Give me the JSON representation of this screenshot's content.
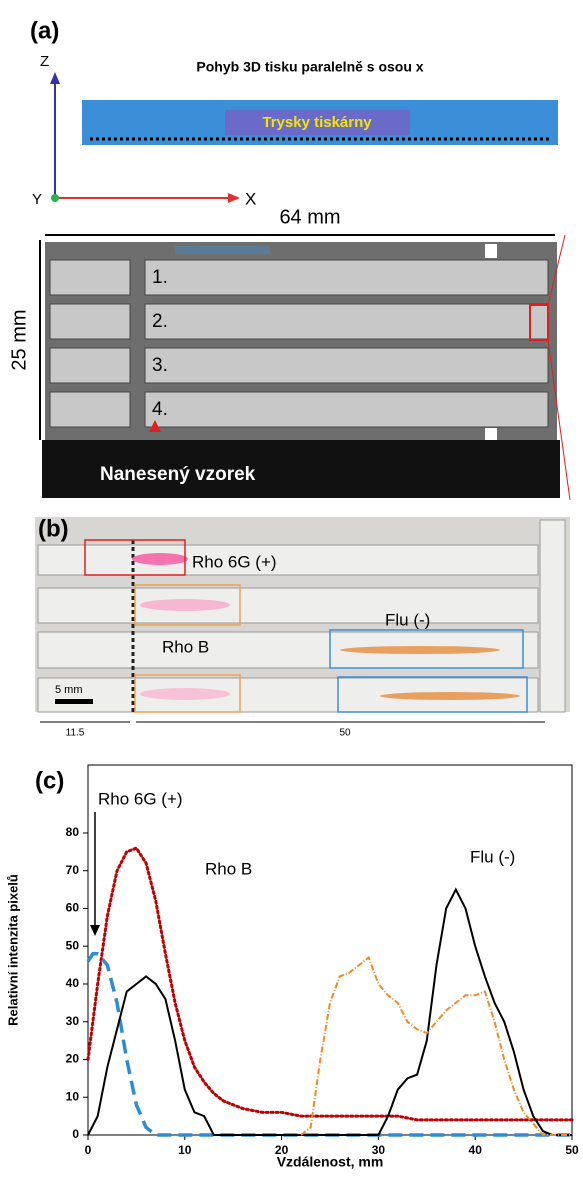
{
  "panel_a": {
    "label": "(a)",
    "title": "Pohyb 3D tisku paralelně s osou x",
    "axis_z": "Z",
    "axis_x": "X",
    "axis_y": "Y",
    "nozzles": "Trysky tiskárny",
    "width": "64 mm",
    "height": "25 mm",
    "strips": [
      "1.",
      "2.",
      "3.",
      "4."
    ],
    "sample": "Nanesený vzorek"
  },
  "panel_b": {
    "label": "(b)",
    "rho6g": "Rho 6G (+)",
    "rhob": "Rho B",
    "flu": "Flu (-)",
    "scale": "5 mm",
    "dist_left": "11.5",
    "dist_right": "50"
  },
  "chart_data": {
    "type": "line",
    "label": "(c)",
    "xlabel": "Vzdálenost, mm",
    "ylabel": "Relativní intenzita pixelů",
    "annotations": [
      "Rho 6G (+)",
      "Rho B",
      "Flu (-)"
    ],
    "xlim": [
      0,
      50
    ],
    "ylim": [
      0,
      98
    ],
    "xticks": [
      0,
      10,
      20,
      30,
      40,
      50
    ],
    "yticks": [
      0,
      10,
      20,
      30,
      40,
      50,
      60,
      70,
      80
    ],
    "series": [
      {
        "color": "#c00000",
        "style": "dotted",
        "x": [
          0,
          1,
          2,
          3,
          4,
          5,
          6,
          7,
          8,
          9,
          10,
          11,
          12,
          13,
          14,
          15,
          16,
          18,
          20,
          22,
          24,
          26,
          28,
          30,
          32,
          34,
          36,
          38,
          40,
          42,
          44,
          46,
          48,
          50
        ],
        "values": [
          20,
          40,
          58,
          70,
          75,
          76,
          72,
          62,
          48,
          35,
          25,
          18,
          14,
          11,
          9,
          8,
          7,
          6,
          6,
          5,
          5,
          5,
          5,
          5,
          5,
          4,
          4,
          4,
          4,
          4,
          4,
          4,
          4,
          4
        ]
      },
      {
        "color": "#2e8bd6",
        "style": "dashed",
        "x": [
          0,
          0.5,
          1,
          2,
          3,
          4,
          5,
          6,
          7,
          10,
          20,
          30,
          40,
          50
        ],
        "values": [
          46,
          48,
          48,
          45,
          35,
          20,
          8,
          2,
          0,
          0,
          0,
          0,
          0,
          0
        ]
      },
      {
        "color": "#000000",
        "style": "solid",
        "x": [
          0,
          1,
          2,
          3,
          4,
          5,
          6,
          7,
          8,
          9,
          10,
          11,
          12,
          13,
          15,
          20,
          25,
          30,
          31,
          32,
          33,
          34,
          35,
          36,
          37,
          38,
          39,
          40,
          41,
          42,
          43,
          44,
          45,
          46,
          47,
          48,
          50
        ],
        "values": [
          0,
          5,
          18,
          28,
          38,
          40,
          42,
          40,
          36,
          25,
          12,
          6,
          5,
          0,
          0,
          0,
          0,
          0,
          5,
          12,
          15,
          16,
          25,
          45,
          60,
          65,
          60,
          50,
          42,
          35,
          30,
          22,
          12,
          5,
          1,
          0,
          0
        ]
      },
      {
        "color": "#f08a24",
        "style": "dashdot",
        "x": [
          22,
          23,
          24,
          25,
          26,
          27,
          28,
          29,
          30,
          31,
          32,
          33,
          34,
          35,
          36,
          37,
          38,
          39,
          40,
          41,
          42,
          43,
          44,
          45,
          46,
          47,
          50
        ],
        "values": [
          0,
          2,
          20,
          35,
          42,
          43,
          45,
          47,
          40,
          37,
          35,
          30,
          28,
          27,
          30,
          33,
          35,
          37,
          37,
          38,
          30,
          20,
          12,
          6,
          3,
          0,
          0
        ]
      }
    ]
  }
}
